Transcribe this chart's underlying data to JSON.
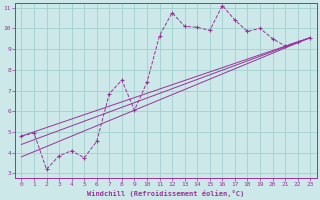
{
  "xlabel": "Windchill (Refroidissement éolien,°C)",
  "bg_color": "#cce8e8",
  "grid_color": "#99cccc",
  "line_color": "#993399",
  "xlim": [
    -0.5,
    23.5
  ],
  "ylim": [
    2.8,
    11.2
  ],
  "xticks": [
    0,
    1,
    2,
    3,
    4,
    5,
    6,
    7,
    8,
    9,
    10,
    11,
    12,
    13,
    14,
    15,
    16,
    17,
    18,
    19,
    20,
    21,
    22,
    23
  ],
  "yticks": [
    3,
    4,
    5,
    6,
    7,
    8,
    9,
    10,
    11
  ],
  "series1_x": [
    0,
    1,
    2,
    3,
    4,
    5,
    6,
    7,
    8,
    9,
    10,
    11,
    12,
    13,
    14,
    15,
    16,
    17,
    18,
    19,
    20,
    21,
    22,
    23
  ],
  "series1_y": [
    4.8,
    4.95,
    3.2,
    3.85,
    4.1,
    3.75,
    4.55,
    6.85,
    7.5,
    6.05,
    7.4,
    9.65,
    10.75,
    10.1,
    10.05,
    9.9,
    11.1,
    10.4,
    9.85,
    10.0,
    9.5,
    9.15,
    9.35,
    9.55
  ],
  "series2_x": [
    0,
    23
  ],
  "series2_y": [
    4.8,
    9.55
  ],
  "series3_x": [
    0,
    23
  ],
  "series3_y": [
    4.4,
    9.55
  ],
  "series4_x": [
    0,
    23
  ],
  "series4_y": [
    3.8,
    9.55
  ]
}
